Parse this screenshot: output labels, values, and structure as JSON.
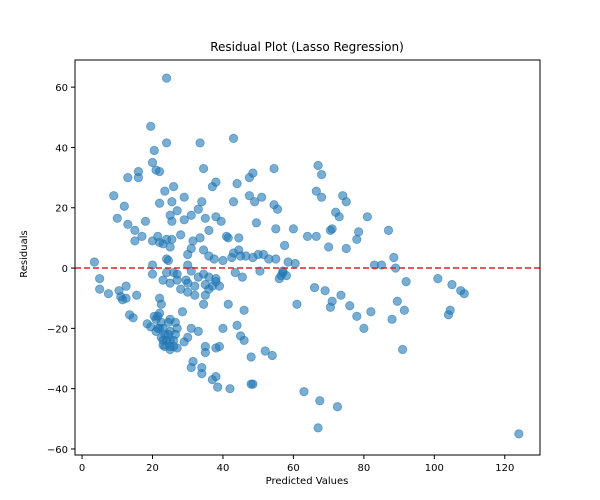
{
  "chart_data": {
    "type": "scatter",
    "title": "Residual Plot (Lasso Regression)",
    "xlabel": "Predicted Values",
    "ylabel": "Residuals",
    "xlim": [
      -2,
      130
    ],
    "ylim": [
      -62,
      69
    ],
    "xticks": [
      0,
      20,
      40,
      60,
      80,
      100,
      120
    ],
    "yticks": [
      -60,
      -40,
      -20,
      0,
      20,
      40,
      60
    ],
    "grid": false,
    "point_color": "#1f77b4",
    "point_opacity": 0.6,
    "reference_line": {
      "y": 0,
      "color": "#d62728",
      "style": "dashed"
    },
    "points": [
      [
        3.5,
        2
      ],
      [
        5,
        -3.5
      ],
      [
        5,
        -7
      ],
      [
        7.5,
        -8.5
      ],
      [
        9,
        24
      ],
      [
        10,
        16.5
      ],
      [
        10.5,
        -7.5
      ],
      [
        11,
        -9.5
      ],
      [
        11.5,
        -10.5
      ],
      [
        12,
        20.5
      ],
      [
        12.5,
        -6
      ],
      [
        12.5,
        -10
      ],
      [
        13,
        30
      ],
      [
        13,
        14.5
      ],
      [
        13.5,
        -15.5
      ],
      [
        14.5,
        -16.5
      ],
      [
        15,
        12.5
      ],
      [
        15,
        9
      ],
      [
        15.5,
        -9
      ],
      [
        16,
        32
      ],
      [
        16,
        30
      ],
      [
        17,
        10.5
      ],
      [
        18,
        15.5
      ],
      [
        18.5,
        -18.5
      ],
      [
        19.5,
        47
      ],
      [
        19.5,
        -19.5
      ],
      [
        20,
        35
      ],
      [
        20,
        9
      ],
      [
        20,
        1
      ],
      [
        20,
        -2
      ],
      [
        20.5,
        39
      ],
      [
        20.5,
        -16
      ],
      [
        21,
        32.5
      ],
      [
        21,
        -21
      ],
      [
        21,
        -17
      ],
      [
        21.5,
        10.5
      ],
      [
        21.5,
        -16
      ],
      [
        21.5,
        -20
      ],
      [
        22,
        32
      ],
      [
        22,
        21.5
      ],
      [
        22,
        8.5
      ],
      [
        22,
        -10
      ],
      [
        22,
        -15
      ],
      [
        22,
        -20
      ],
      [
        22.5,
        -12
      ],
      [
        22.5,
        -18
      ],
      [
        22.5,
        -23
      ],
      [
        23,
        8
      ],
      [
        23,
        -4
      ],
      [
        23,
        -20
      ],
      [
        23,
        -24
      ],
      [
        23,
        -25.5
      ],
      [
        23.5,
        25.5
      ],
      [
        23.5,
        -22
      ],
      [
        23.5,
        -26
      ],
      [
        24,
        63
      ],
      [
        24,
        41.5
      ],
      [
        24,
        9.5
      ],
      [
        24,
        3
      ],
      [
        24,
        -1.5
      ],
      [
        24,
        -24
      ],
      [
        24.5,
        2.5
      ],
      [
        24.5,
        -18
      ],
      [
        24.5,
        -22
      ],
      [
        25,
        17.5
      ],
      [
        25,
        7
      ],
      [
        25,
        -5
      ],
      [
        25,
        -17
      ],
      [
        25,
        -21
      ],
      [
        25,
        -24
      ],
      [
        25,
        -26
      ],
      [
        25,
        -27
      ],
      [
        25.5,
        22
      ],
      [
        25.5,
        15.5
      ],
      [
        25.5,
        9.5
      ],
      [
        26,
        27
      ],
      [
        26,
        -1.5
      ],
      [
        26,
        -24
      ],
      [
        26,
        -26
      ],
      [
        26.5,
        -18
      ],
      [
        26.5,
        -22
      ],
      [
        27,
        19
      ],
      [
        27,
        -2
      ],
      [
        27,
        -4
      ],
      [
        27,
        -20
      ],
      [
        27,
        -26.5
      ],
      [
        28,
        11
      ],
      [
        28,
        -7
      ],
      [
        28.5,
        -14.5
      ],
      [
        29,
        23.5
      ],
      [
        29,
        16
      ],
      [
        29,
        -24.5
      ],
      [
        29.5,
        -4
      ],
      [
        30,
        4.5
      ],
      [
        30,
        1
      ],
      [
        30,
        -5
      ],
      [
        30,
        -8
      ],
      [
        30,
        -23
      ],
      [
        31,
        17.5
      ],
      [
        31,
        6.5
      ],
      [
        31,
        -1
      ],
      [
        31,
        -20
      ],
      [
        31,
        -33
      ],
      [
        31.5,
        9
      ],
      [
        31.5,
        -31
      ],
      [
        32,
        -6
      ],
      [
        32,
        -9
      ],
      [
        33,
        19.5
      ],
      [
        33,
        -3
      ],
      [
        33,
        -21
      ],
      [
        33.5,
        41.5
      ],
      [
        33.5,
        10
      ],
      [
        34,
        22
      ],
      [
        34,
        -33
      ],
      [
        34,
        -35
      ],
      [
        34.5,
        33
      ],
      [
        34.5,
        -2
      ],
      [
        34.5,
        6
      ],
      [
        34.5,
        -12
      ],
      [
        35,
        16.5
      ],
      [
        35,
        -5.5
      ],
      [
        35,
        -9
      ],
      [
        35,
        -26
      ],
      [
        35,
        -28
      ],
      [
        36,
        12.5
      ],
      [
        36,
        4
      ],
      [
        36,
        -3
      ],
      [
        36,
        -7
      ],
      [
        37,
        27
      ],
      [
        37,
        -37
      ],
      [
        37,
        -6
      ],
      [
        37.5,
        3
      ],
      [
        38,
        28.5
      ],
      [
        38,
        17
      ],
      [
        38,
        -3.5
      ],
      [
        38,
        -4.5
      ],
      [
        38,
        -26.5
      ],
      [
        38,
        -36
      ],
      [
        38.5,
        -39.5
      ],
      [
        39,
        -6
      ],
      [
        39,
        -26
      ],
      [
        39.5,
        15.5
      ],
      [
        40,
        -20
      ],
      [
        40,
        2.5
      ],
      [
        41,
        10.5
      ],
      [
        41.5,
        10
      ],
      [
        41.5,
        -12
      ],
      [
        42,
        -40
      ],
      [
        42.5,
        3.5
      ],
      [
        43,
        43
      ],
      [
        43,
        5
      ],
      [
        43,
        22
      ],
      [
        43.5,
        -1.5
      ],
      [
        44,
        -19
      ],
      [
        44,
        28
      ],
      [
        44.5,
        10
      ],
      [
        44.5,
        6
      ],
      [
        45,
        -22.5
      ],
      [
        45,
        4
      ],
      [
        45.5,
        -3
      ],
      [
        46,
        -14
      ],
      [
        46,
        -24
      ],
      [
        46.5,
        4
      ],
      [
        47.5,
        24
      ],
      [
        47.5,
        30
      ],
      [
        48,
        -29.5
      ],
      [
        48,
        -38.5
      ],
      [
        48.5,
        3.5
      ],
      [
        48.5,
        31.5
      ],
      [
        48.5,
        -38.5
      ],
      [
        49,
        22
      ],
      [
        49.5,
        15
      ],
      [
        50,
        4.5
      ],
      [
        50.5,
        -1
      ],
      [
        51,
        23.5
      ],
      [
        51.5,
        4.5
      ],
      [
        52,
        -27.5
      ],
      [
        53,
        3
      ],
      [
        54,
        -29
      ],
      [
        54.5,
        21
      ],
      [
        54.5,
        33
      ],
      [
        55,
        13
      ],
      [
        55,
        3
      ],
      [
        55.5,
        19.5
      ],
      [
        56,
        -3.5
      ],
      [
        56.5,
        -2.5
      ],
      [
        57,
        -1.5
      ],
      [
        57,
        -1
      ],
      [
        57.5,
        7.5
      ],
      [
        58,
        -2.5
      ],
      [
        58.5,
        2
      ],
      [
        60,
        13
      ],
      [
        60.5,
        1.5
      ],
      [
        61,
        -12
      ],
      [
        63,
        -41
      ],
      [
        64,
        10.5
      ],
      [
        66,
        -6.5
      ],
      [
        66.5,
        25.5
      ],
      [
        66.5,
        10.5
      ],
      [
        67,
        34
      ],
      [
        67,
        -53
      ],
      [
        67.5,
        -44
      ],
      [
        68,
        31
      ],
      [
        68,
        23.5
      ],
      [
        69,
        -7.5
      ],
      [
        70,
        7
      ],
      [
        70.5,
        -13
      ],
      [
        70.5,
        12.5
      ],
      [
        71,
        -11
      ],
      [
        71,
        13
      ],
      [
        72,
        18.5
      ],
      [
        72.5,
        -46
      ],
      [
        73,
        17
      ],
      [
        73.5,
        -9
      ],
      [
        74,
        24
      ],
      [
        75,
        6.5
      ],
      [
        75,
        22
      ],
      [
        76,
        -12.5
      ],
      [
        78,
        -16
      ],
      [
        78,
        9.5
      ],
      [
        78.5,
        12
      ],
      [
        80,
        -20
      ],
      [
        81,
        17
      ],
      [
        82,
        -14.5
      ],
      [
        83,
        1
      ],
      [
        85,
        1
      ],
      [
        87,
        12.5
      ],
      [
        88,
        -17
      ],
      [
        88.5,
        3.5
      ],
      [
        89,
        0
      ],
      [
        89.5,
        -11
      ],
      [
        91,
        -27
      ],
      [
        91.5,
        -14
      ],
      [
        92,
        -4.5
      ],
      [
        101,
        -3.5
      ],
      [
        104,
        -15.5
      ],
      [
        104.5,
        -14
      ],
      [
        105,
        -5.5
      ],
      [
        107.5,
        -7.5
      ],
      [
        108.5,
        -8.5
      ],
      [
        124,
        -55
      ]
    ]
  }
}
